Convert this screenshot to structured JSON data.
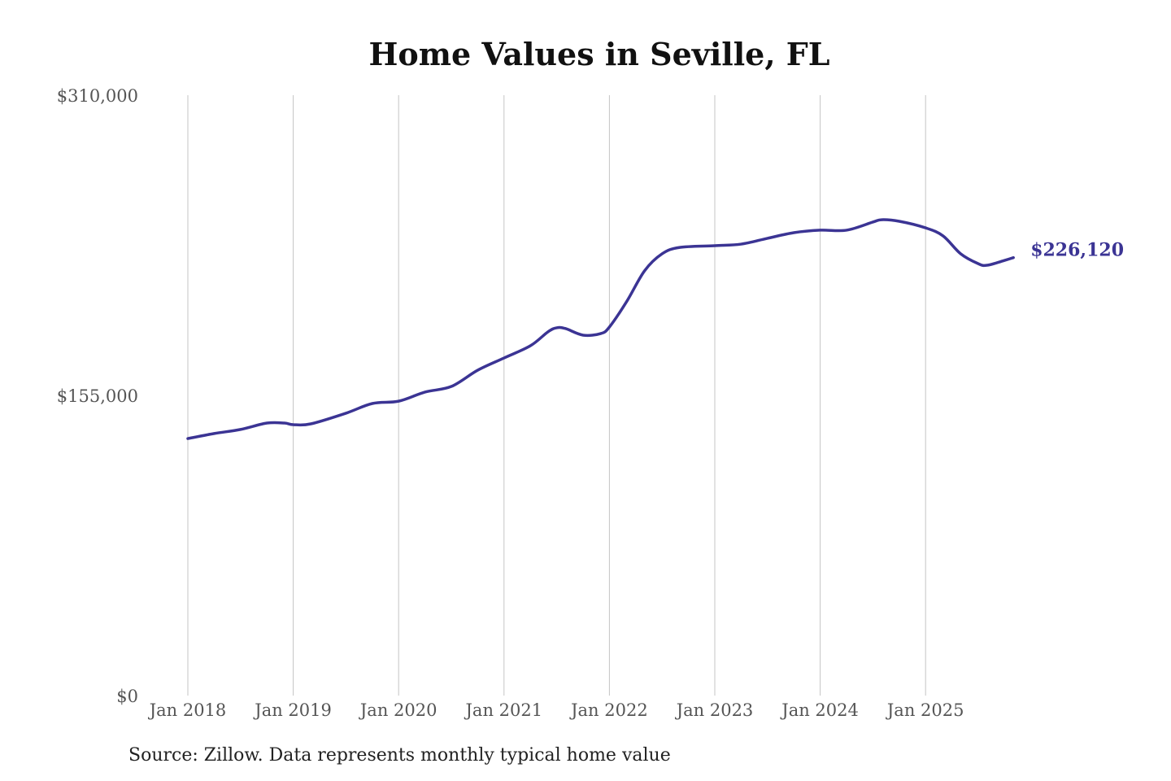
{
  "chart_data": {
    "type": "line",
    "title": "Home Values in Seville, FL",
    "source": "Source: Zillow. Data represents monthly typical home value",
    "xlabel": "",
    "ylabel": "",
    "ylim": [
      0,
      310000
    ],
    "y_ticks": [
      0,
      155000,
      310000
    ],
    "y_tick_labels": [
      "$0",
      "$155,000",
      "$310,000"
    ],
    "x_ticks": [
      "2018-01",
      "2019-01",
      "2020-01",
      "2021-01",
      "2022-01",
      "2023-01",
      "2024-01",
      "2025-01"
    ],
    "x_tick_labels": [
      "Jan 2018",
      "Jan 2019",
      "Jan 2020",
      "Jan 2021",
      "Jan 2022",
      "Jan 2023",
      "Jan 2024",
      "Jan 2025"
    ],
    "grid": "vertical",
    "line_color": "#3b3494",
    "end_label": "$226,120",
    "series": [
      {
        "x": [
          "2018-01",
          "2018-04",
          "2018-07",
          "2018-10",
          "2018-12",
          "2019-01",
          "2019-03",
          "2019-07",
          "2019-10",
          "2020-01",
          "2020-04",
          "2020-07",
          "2020-10",
          "2021-01",
          "2021-04",
          "2021-06",
          "2021-07",
          "2021-08",
          "2021-10",
          "2021-12",
          "2022-01",
          "2022-03",
          "2022-05",
          "2022-07",
          "2022-09",
          "2023-01",
          "2023-04",
          "2023-07",
          "2023-10",
          "2024-01",
          "2024-04",
          "2024-07",
          "2024-08",
          "2024-10",
          "2025-01",
          "2025-03",
          "2025-05",
          "2025-07",
          "2025-08",
          "2025-10",
          "2025-11"
        ],
        "values": [
          132700,
          135300,
          137400,
          140700,
          140700,
          139900,
          140300,
          145800,
          150800,
          152000,
          156700,
          159600,
          168000,
          174300,
          180600,
          187800,
          189900,
          189500,
          186100,
          186900,
          190300,
          203700,
          219300,
          228100,
          231400,
          232300,
          233100,
          236100,
          239000,
          240300,
          240300,
          244500,
          245700,
          244900,
          241500,
          237300,
          228100,
          223000,
          222200,
          224700,
          226120
        ]
      }
    ]
  }
}
